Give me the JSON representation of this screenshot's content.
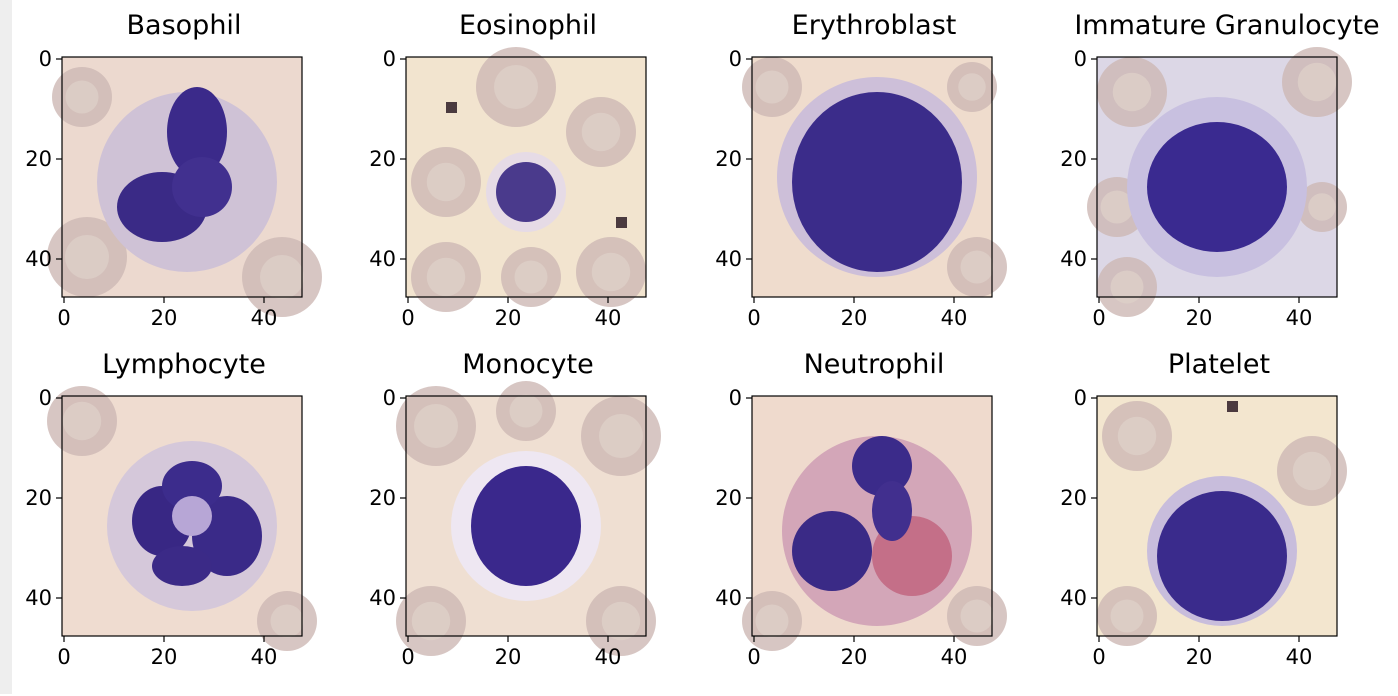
{
  "panels": [
    {
      "title": "Basophil",
      "kind": "basophil"
    },
    {
      "title": "Eosinophil",
      "kind": "eosinophil"
    },
    {
      "title": "Erythroblast",
      "kind": "erythroblast"
    },
    {
      "title": "Immature Granulocyte",
      "kind": "immature"
    },
    {
      "title": "Lymphocyte",
      "kind": "lymphocyte"
    },
    {
      "title": "Monocyte",
      "kind": "monocyte"
    },
    {
      "title": "Neutrophil",
      "kind": "neutrophil"
    },
    {
      "title": "Platelet",
      "kind": "platelet"
    }
  ],
  "axes": {
    "x_ticks": [
      "0",
      "20",
      "40"
    ],
    "y_ticks": [
      "0",
      "20",
      "40"
    ],
    "extent": [
      0,
      48
    ]
  }
}
